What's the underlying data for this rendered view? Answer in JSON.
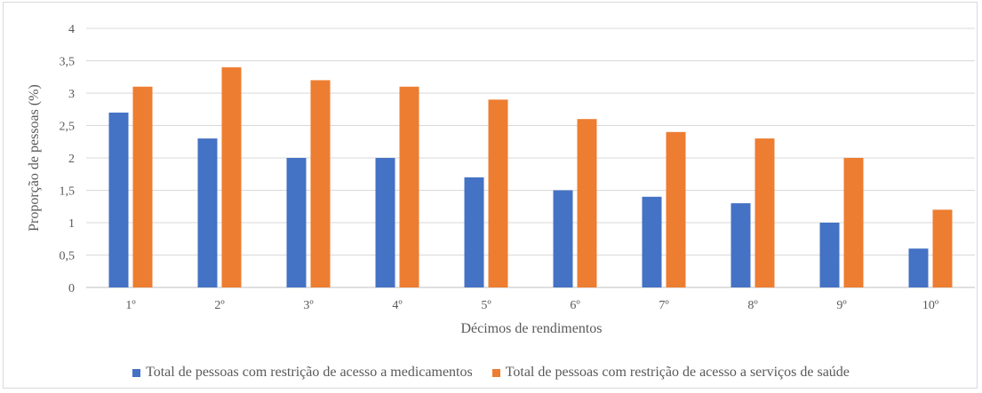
{
  "chart_data": {
    "type": "bar",
    "categories": [
      "1º",
      "2º",
      "3º",
      "4º",
      "5º",
      "6º",
      "7º",
      "8º",
      "9º",
      "10º"
    ],
    "series": [
      {
        "name": "Total de pessoas com restrição de acesso a medicamentos",
        "color": "#4472c4",
        "values": [
          2.7,
          2.3,
          2.0,
          2.0,
          1.7,
          1.5,
          1.4,
          1.3,
          1.0,
          0.6
        ]
      },
      {
        "name": "Total de pessoas com restrição de acesso a serviços de saúde",
        "color": "#ed7d31",
        "values": [
          3.1,
          3.4,
          3.2,
          3.1,
          2.9,
          2.6,
          2.4,
          2.3,
          2.0,
          1.2
        ]
      }
    ],
    "ylim": [
      0,
      4
    ],
    "yticks": [
      "0",
      "0,5",
      "1",
      "1,5",
      "2",
      "2,5",
      "3",
      "3,5",
      "4"
    ],
    "ylabel": "Proporção de pessoas (%)",
    "xlabel": "Décimos de rendimentos",
    "grid": true,
    "legend_position": "bottom"
  }
}
